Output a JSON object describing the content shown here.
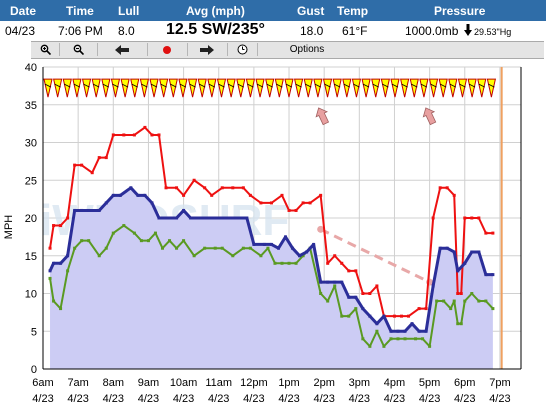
{
  "header": {
    "labels": {
      "date": "Date",
      "time": "Time",
      "lull": "Lull",
      "avg": "Avg (mph)",
      "gust": "Gust",
      "temp": "Temp",
      "pressure": "Pressure"
    },
    "values": {
      "date": "04/23",
      "time": "7:06 PM",
      "lull": "8.0",
      "avg": "12.5 SW/235°",
      "gust": "18.0",
      "temp": "61°F",
      "pressure": "1000.0mb",
      "pressure_trend_icon": "down-arrow",
      "pressure_inhg": "29.53\"Hg"
    }
  },
  "toolbar": {
    "buttons": [
      "zoom-in-icon",
      "zoom-out-icon",
      "arrow-left-icon",
      "record-icon",
      "arrow-right-icon",
      "clock-icon"
    ],
    "options_label": "Options"
  },
  "colors": {
    "gust": "#ee1111",
    "avg": "#2b2e99",
    "lull": "#5a9a22",
    "fill": "#ccccf4",
    "dash": "#e8a8a8",
    "now_line": "#f0a060",
    "arrow_fill": "#ffff00"
  },
  "chart_data": {
    "type": "line",
    "ylabel": "MPH",
    "ylim": [
      0,
      40
    ],
    "yticks": [
      0,
      5,
      10,
      15,
      20,
      25,
      30,
      35,
      40
    ],
    "xlim": [
      0,
      13.6
    ],
    "x_ticks": [
      {
        "x": 0,
        "time": "6am",
        "date": "4/23"
      },
      {
        "x": 1,
        "time": "7am",
        "date": "4/23"
      },
      {
        "x": 2,
        "time": "8am",
        "date": "4/23"
      },
      {
        "x": 3,
        "time": "9am",
        "date": "4/23"
      },
      {
        "x": 4,
        "time": "10am",
        "date": "4/23"
      },
      {
        "x": 5,
        "time": "11am",
        "date": "4/23"
      },
      {
        "x": 6,
        "time": "12pm",
        "date": "4/23"
      },
      {
        "x": 7,
        "time": "1pm",
        "date": "4/23"
      },
      {
        "x": 8,
        "time": "2pm",
        "date": "4/23"
      },
      {
        "x": 9,
        "time": "3pm",
        "date": "4/23"
      },
      {
        "x": 10,
        "time": "4pm",
        "date": "4/23"
      },
      {
        "x": 11,
        "time": "5pm",
        "date": "4/23"
      },
      {
        "x": 12,
        "time": "6pm",
        "date": "4/23"
      },
      {
        "x": 13,
        "time": "7pm",
        "date": "4/23"
      }
    ],
    "series": [
      {
        "key": "gust",
        "points": [
          [
            0.2,
            16
          ],
          [
            0.3,
            19
          ],
          [
            0.5,
            19
          ],
          [
            0.7,
            20
          ],
          [
            0.9,
            27
          ],
          [
            1.1,
            27
          ],
          [
            1.4,
            26
          ],
          [
            1.6,
            28
          ],
          [
            1.8,
            28
          ],
          [
            2.0,
            31
          ],
          [
            2.3,
            31
          ],
          [
            2.6,
            31
          ],
          [
            2.9,
            32
          ],
          [
            3.1,
            31
          ],
          [
            3.3,
            31
          ],
          [
            3.5,
            24
          ],
          [
            3.8,
            24
          ],
          [
            4.0,
            23
          ],
          [
            4.3,
            25
          ],
          [
            4.6,
            24
          ],
          [
            4.8,
            23
          ],
          [
            5.1,
            24
          ],
          [
            5.4,
            24
          ],
          [
            5.7,
            24
          ],
          [
            5.9,
            23
          ],
          [
            6.2,
            22
          ],
          [
            6.5,
            22
          ],
          [
            6.8,
            23
          ],
          [
            7.0,
            21
          ],
          [
            7.2,
            21
          ],
          [
            7.4,
            22
          ],
          [
            7.6,
            22
          ],
          [
            7.9,
            23
          ],
          [
            8.1,
            14
          ],
          [
            8.3,
            15
          ],
          [
            8.5,
            14
          ],
          [
            8.7,
            13
          ],
          [
            8.9,
            13
          ],
          [
            9.1,
            10
          ],
          [
            9.3,
            10
          ],
          [
            9.5,
            11
          ],
          [
            9.7,
            7
          ],
          [
            10.0,
            7
          ],
          [
            10.2,
            7
          ],
          [
            10.4,
            7
          ],
          [
            10.7,
            8
          ],
          [
            10.9,
            8
          ],
          [
            11.1,
            20
          ],
          [
            11.3,
            24
          ],
          [
            11.5,
            24
          ],
          [
            11.7,
            23
          ],
          [
            11.8,
            10
          ],
          [
            11.9,
            10
          ],
          [
            12.0,
            20
          ],
          [
            12.2,
            20
          ],
          [
            12.4,
            20
          ],
          [
            12.6,
            18
          ],
          [
            12.8,
            18
          ]
        ]
      },
      {
        "key": "avg",
        "points": [
          [
            0.2,
            13
          ],
          [
            0.3,
            14
          ],
          [
            0.5,
            14
          ],
          [
            0.7,
            15
          ],
          [
            0.9,
            21
          ],
          [
            1.1,
            21
          ],
          [
            1.3,
            21
          ],
          [
            1.6,
            21
          ],
          [
            1.8,
            22
          ],
          [
            2.0,
            23
          ],
          [
            2.2,
            23
          ],
          [
            2.5,
            24
          ],
          [
            2.7,
            23
          ],
          [
            2.9,
            23
          ],
          [
            3.1,
            22
          ],
          [
            3.3,
            20
          ],
          [
            3.6,
            20
          ],
          [
            3.8,
            20
          ],
          [
            4.0,
            21
          ],
          [
            4.2,
            20
          ],
          [
            4.5,
            20
          ],
          [
            4.8,
            20
          ],
          [
            5.1,
            20
          ],
          [
            5.4,
            20
          ],
          [
            5.7,
            20
          ],
          [
            5.8,
            20
          ],
          [
            6.0,
            16.5
          ],
          [
            6.3,
            16.5
          ],
          [
            6.5,
            16.5
          ],
          [
            6.7,
            16
          ],
          [
            6.9,
            17.5
          ],
          [
            7.1,
            16
          ],
          [
            7.3,
            15
          ],
          [
            7.5,
            15.5
          ],
          [
            7.7,
            16.5
          ],
          [
            7.9,
            11.5
          ],
          [
            8.1,
            11.5
          ],
          [
            8.3,
            11.5
          ],
          [
            8.5,
            11.5
          ],
          [
            8.7,
            9.5
          ],
          [
            8.9,
            9.5
          ],
          [
            9.1,
            8
          ],
          [
            9.3,
            7
          ],
          [
            9.5,
            6
          ],
          [
            9.7,
            7
          ],
          [
            9.9,
            5
          ],
          [
            10.1,
            5
          ],
          [
            10.3,
            5
          ],
          [
            10.5,
            6
          ],
          [
            10.7,
            5
          ],
          [
            10.9,
            5
          ],
          [
            11.1,
            11
          ],
          [
            11.3,
            16
          ],
          [
            11.5,
            16
          ],
          [
            11.7,
            15.5
          ],
          [
            11.8,
            13
          ],
          [
            12.0,
            14
          ],
          [
            12.2,
            15.5
          ],
          [
            12.4,
            15.5
          ],
          [
            12.6,
            12.5
          ],
          [
            12.8,
            12.5
          ]
        ]
      },
      {
        "key": "lull",
        "points": [
          [
            0.2,
            12
          ],
          [
            0.3,
            9
          ],
          [
            0.5,
            8
          ],
          [
            0.7,
            13
          ],
          [
            0.9,
            16
          ],
          [
            1.1,
            17
          ],
          [
            1.3,
            17
          ],
          [
            1.6,
            15
          ],
          [
            1.8,
            16
          ],
          [
            2.0,
            18
          ],
          [
            2.3,
            19
          ],
          [
            2.6,
            18
          ],
          [
            2.8,
            17
          ],
          [
            3.0,
            17
          ],
          [
            3.2,
            18
          ],
          [
            3.4,
            16
          ],
          [
            3.6,
            17
          ],
          [
            3.8,
            16
          ],
          [
            4.0,
            17
          ],
          [
            4.3,
            15
          ],
          [
            4.6,
            16
          ],
          [
            4.9,
            16
          ],
          [
            5.1,
            16
          ],
          [
            5.4,
            15
          ],
          [
            5.7,
            16
          ],
          [
            5.9,
            16
          ],
          [
            6.2,
            15
          ],
          [
            6.4,
            16
          ],
          [
            6.6,
            14
          ],
          [
            6.8,
            14
          ],
          [
            7.0,
            14
          ],
          [
            7.2,
            14
          ],
          [
            7.4,
            15
          ],
          [
            7.6,
            16
          ],
          [
            7.9,
            10
          ],
          [
            8.1,
            9
          ],
          [
            8.3,
            11
          ],
          [
            8.5,
            7
          ],
          [
            8.7,
            7
          ],
          [
            8.9,
            8
          ],
          [
            9.1,
            4
          ],
          [
            9.3,
            3
          ],
          [
            9.5,
            5
          ],
          [
            9.7,
            3
          ],
          [
            9.9,
            4
          ],
          [
            10.1,
            4
          ],
          [
            10.3,
            4
          ],
          [
            10.6,
            4
          ],
          [
            10.8,
            4
          ],
          [
            11.0,
            3
          ],
          [
            11.2,
            9
          ],
          [
            11.4,
            9
          ],
          [
            11.6,
            8
          ],
          [
            11.7,
            9
          ],
          [
            11.8,
            6
          ],
          [
            11.9,
            6
          ],
          [
            12.0,
            9
          ],
          [
            12.2,
            10
          ],
          [
            12.4,
            9
          ],
          [
            12.6,
            9
          ],
          [
            12.8,
            8
          ]
        ]
      }
    ],
    "dashed_trend": {
      "from": [
        7.9,
        18.5
      ],
      "to": [
        11.0,
        11.5
      ]
    },
    "now_line_x": 13.05,
    "direction_arrow_count": 47,
    "notable_arrows": [
      {
        "x": 7.95,
        "color": "#e8a0a0"
      },
      {
        "x": 11.0,
        "color": "#e8a0a0"
      }
    ]
  }
}
